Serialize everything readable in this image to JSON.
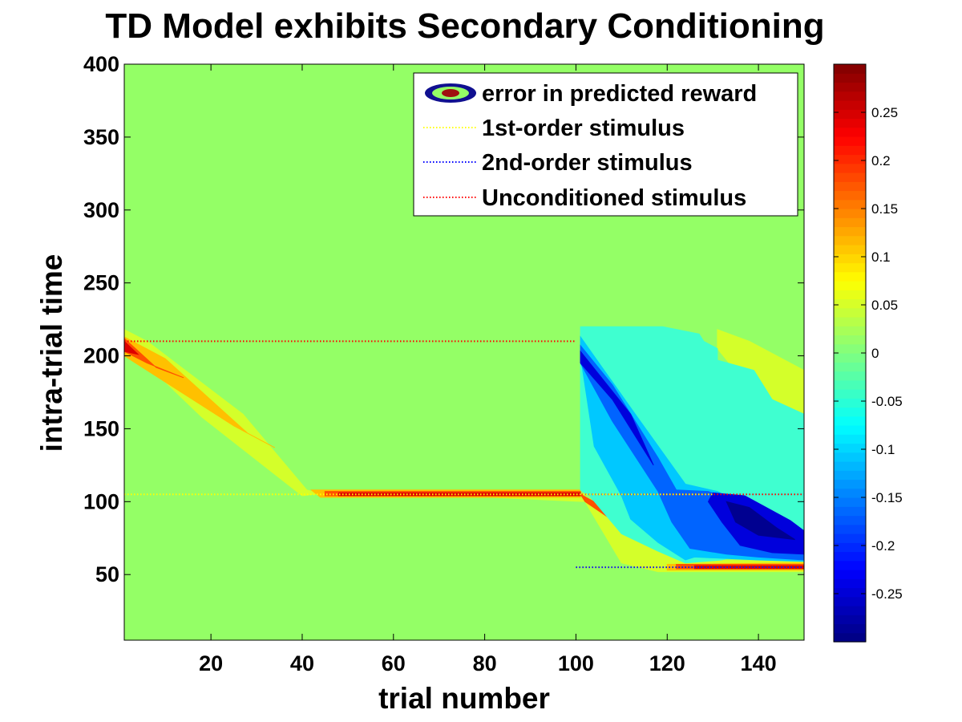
{
  "chart_data": {
    "type": "heatmap",
    "subtype": "filled-contour",
    "title": "TD Model exhibits Secondary Conditioning",
    "xlabel": "trial number",
    "ylabel": "intra-trial time",
    "xlim": [
      1,
      150
    ],
    "ylim": [
      5,
      400
    ],
    "x_ticks": [
      20,
      40,
      60,
      80,
      100,
      120,
      140
    ],
    "y_ticks": [
      50,
      100,
      150,
      200,
      250,
      300,
      350,
      400
    ],
    "grid": false,
    "colormap": "jet",
    "background_color": "#94ff66",
    "color_range": [
      -0.3,
      0.3
    ],
    "colorbar_ticks": [
      -0.25,
      -0.2,
      -0.15,
      -0.1,
      -0.05,
      0,
      0.05,
      0.1,
      0.15,
      0.2,
      0.25
    ],
    "legend_position": "top-right",
    "legend": [
      {
        "label": "error in predicted reward",
        "marker": "contour-glyph"
      },
      {
        "label": "1st-order stimulus",
        "color": "#ffff00",
        "style": "dotted"
      },
      {
        "label": "2nd-order stimulus",
        "color": "#0000ff",
        "style": "dotted"
      },
      {
        "label": "Unconditioned stimulus",
        "color": "#ff0000",
        "style": "dotted"
      }
    ],
    "stimulus_lines": [
      {
        "name": "Unconditioned stimulus",
        "color": "#ff0000",
        "segments": [
          {
            "x": [
              1,
              100
            ],
            "y": 210
          },
          {
            "x": [
              100,
              150
            ],
            "y": 105
          }
        ]
      },
      {
        "name": "1st-order stimulus",
        "color": "#ffff00",
        "segments": [
          {
            "x": [
              1,
              130
            ],
            "y": 105
          },
          {
            "x": [
              100,
              150
            ],
            "y": 55
          }
        ]
      },
      {
        "name": "2nd-order stimulus",
        "color": "#0000ff",
        "segments": [
          {
            "x": [
              100,
              150
            ],
            "y": 55
          }
        ]
      }
    ],
    "regions": [
      {
        "level": 0.03,
        "color": "#d4ff2a",
        "points": [
          [
            1,
            218
          ],
          [
            6,
            210
          ],
          [
            27,
            160
          ],
          [
            41,
            108
          ],
          [
            47,
            103
          ],
          [
            60,
            103
          ],
          [
            101,
            103
          ],
          [
            107,
            90
          ],
          [
            117,
            67
          ],
          [
            122,
            60
          ],
          [
            150,
            59
          ],
          [
            150,
            52
          ],
          [
            124,
            52
          ],
          [
            118,
            52
          ],
          [
            110,
            58
          ],
          [
            102,
            100
          ],
          [
            60,
            106
          ],
          [
            45,
            106
          ],
          [
            40,
            104
          ],
          [
            18,
            158
          ],
          [
            4,
            200
          ],
          [
            1,
            200
          ]
        ]
      },
      {
        "level": 0.03,
        "color": "#d4ff2a",
        "points": [
          [
            131,
            205
          ],
          [
            131,
            218
          ],
          [
            138,
            210
          ],
          [
            150,
            190
          ],
          [
            150,
            160
          ],
          [
            138,
            178
          ]
        ]
      },
      {
        "level": 0.08,
        "color": "#ffc000",
        "points": [
          [
            1,
            213
          ],
          [
            10,
            198
          ],
          [
            28,
            147
          ],
          [
            34,
            137
          ],
          [
            25,
            152
          ],
          [
            8,
            186
          ],
          [
            1,
            200
          ]
        ]
      },
      {
        "level": 0.08,
        "color": "#ffc000",
        "points": [
          [
            101,
            106
          ],
          [
            108,
            88
          ],
          [
            117,
            70
          ],
          [
            114,
            72
          ],
          [
            103,
            100
          ]
        ]
      },
      {
        "level": 0.08,
        "color": "#ffc000",
        "points": [
          [
            120,
            57
          ],
          [
            150,
            58
          ],
          [
            150,
            53
          ],
          [
            120,
            53
          ]
        ]
      },
      {
        "level": 0.08,
        "color": "#ffc000",
        "points": [
          [
            42,
            108
          ],
          [
            60,
            108
          ],
          [
            101,
            108
          ],
          [
            101,
            103
          ],
          [
            60,
            103
          ],
          [
            44,
            103
          ]
        ]
      },
      {
        "level": 0.18,
        "color": "#ff5000",
        "points": [
          [
            1,
            212
          ],
          [
            8,
            192
          ],
          [
            14,
            185
          ],
          [
            6,
            195
          ],
          [
            1,
            203
          ]
        ]
      },
      {
        "level": 0.18,
        "color": "#ff5000",
        "points": [
          [
            101,
            105
          ],
          [
            108,
            93
          ],
          [
            114,
            80
          ],
          [
            110,
            83
          ],
          [
            102,
            100
          ]
        ]
      },
      {
        "level": 0.18,
        "color": "#ff5000",
        "points": [
          [
            45,
            107
          ],
          [
            101,
            107
          ],
          [
            101,
            104
          ],
          [
            45,
            104
          ]
        ]
      },
      {
        "level": 0.18,
        "color": "#ff5000",
        "points": [
          [
            122,
            57
          ],
          [
            150,
            57
          ],
          [
            150,
            54
          ],
          [
            122,
            54
          ]
        ]
      },
      {
        "level": 0.27,
        "color": "#dd0000",
        "points": [
          [
            1,
            210
          ],
          [
            4,
            201
          ],
          [
            1,
            203
          ]
        ]
      },
      {
        "level": 0.27,
        "color": "#dd0000",
        "points": [
          [
            48,
            106
          ],
          [
            101,
            106
          ],
          [
            101,
            104
          ],
          [
            48,
            104
          ]
        ]
      },
      {
        "level": 0.27,
        "color": "#dd0000",
        "points": [
          [
            126,
            56
          ],
          [
            150,
            56
          ],
          [
            150,
            54
          ],
          [
            126,
            54
          ]
        ]
      },
      {
        "level": -0.03,
        "color": "#3fffd0",
        "points": [
          [
            101,
            220
          ],
          [
            119,
            220
          ],
          [
            127,
            215
          ],
          [
            128,
            210
          ],
          [
            131,
            205
          ],
          [
            131,
            197
          ],
          [
            139,
            190
          ],
          [
            143,
            170
          ],
          [
            150,
            160
          ],
          [
            150,
            80
          ],
          [
            142,
            70
          ],
          [
            132,
            60
          ],
          [
            124,
            58
          ],
          [
            118,
            66
          ],
          [
            110,
            78
          ],
          [
            103,
            104
          ],
          [
            101,
            108
          ]
        ]
      },
      {
        "level": -0.08,
        "color": "#00c8ff",
        "points": [
          [
            101,
            213
          ],
          [
            113,
            160
          ],
          [
            124,
            112
          ],
          [
            131,
            107
          ],
          [
            145,
            86
          ],
          [
            150,
            80
          ],
          [
            150,
            59
          ],
          [
            140,
            60
          ],
          [
            126,
            62
          ],
          [
            124,
            60
          ],
          [
            118,
            72
          ],
          [
            112,
            88
          ],
          [
            110,
            104
          ],
          [
            104,
            138
          ],
          [
            101,
            200
          ]
        ]
      },
      {
        "level": -0.15,
        "color": "#0064ff",
        "points": [
          [
            101,
            207
          ],
          [
            108,
            180
          ],
          [
            118,
            130
          ],
          [
            122,
            108
          ],
          [
            129,
            107
          ],
          [
            140,
            94
          ],
          [
            150,
            79
          ],
          [
            150,
            60
          ],
          [
            140,
            62
          ],
          [
            133,
            64
          ],
          [
            125,
            68
          ],
          [
            121,
            86
          ],
          [
            118,
            107
          ],
          [
            108,
            155
          ],
          [
            101,
            195
          ]
        ]
      },
      {
        "level": -0.22,
        "color": "#0000dc",
        "points": [
          [
            101,
            203
          ],
          [
            112,
            160
          ],
          [
            117,
            125
          ],
          [
            114,
            140
          ],
          [
            108,
            170
          ],
          [
            101,
            195
          ]
        ]
      },
      {
        "level": -0.22,
        "color": "#0000dc",
        "points": [
          [
            130,
            106
          ],
          [
            137,
            104
          ],
          [
            147,
            87
          ],
          [
            150,
            80
          ],
          [
            150,
            64
          ],
          [
            143,
            65
          ],
          [
            136,
            70
          ],
          [
            132,
            86
          ],
          [
            129,
            100
          ]
        ]
      },
      {
        "level": -0.27,
        "color": "#000090",
        "points": [
          [
            133,
            100
          ],
          [
            138,
            96
          ],
          [
            144,
            82
          ],
          [
            148,
            74
          ],
          [
            140,
            77
          ],
          [
            135,
            86
          ]
        ]
      }
    ]
  }
}
